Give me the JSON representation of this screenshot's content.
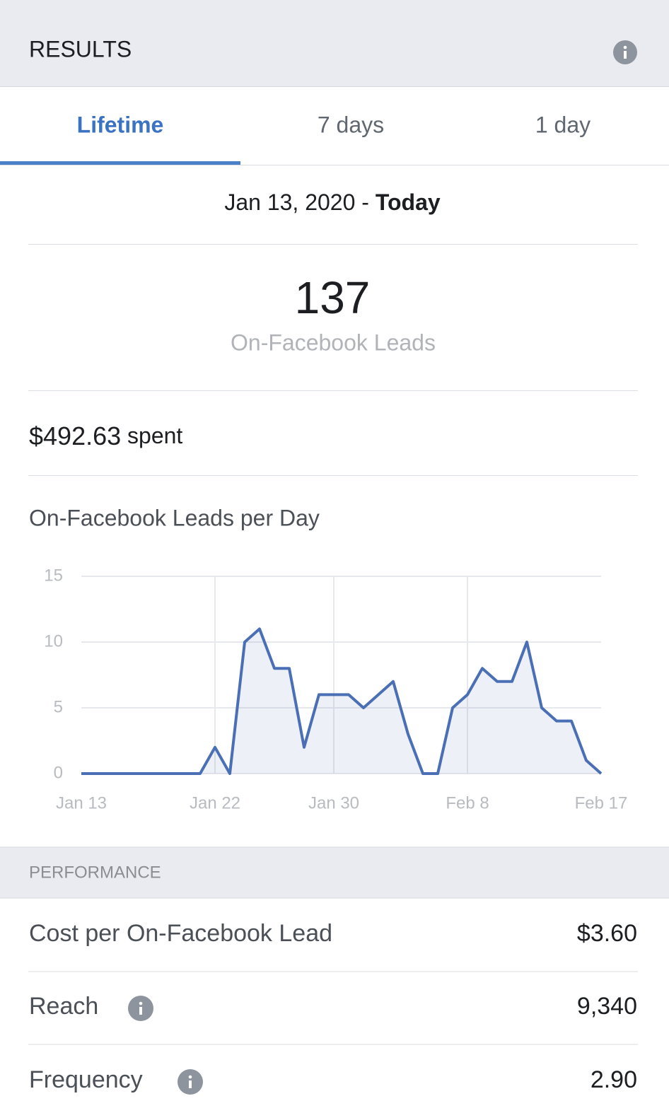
{
  "header": {
    "title": "RESULTS"
  },
  "tabs": {
    "items": [
      "Lifetime",
      "7 days",
      "1 day"
    ],
    "active": 0
  },
  "date_range": {
    "start": "Jan 13, 2020",
    "separator": "-",
    "end": "Today"
  },
  "summary": {
    "value": "137",
    "label": "On-Facebook Leads"
  },
  "spent": {
    "amount": "$492.63",
    "label": "spent"
  },
  "chart_data": {
    "type": "line",
    "title": "On-Facebook Leads per Day",
    "categories": [
      "Jan 13",
      null,
      null,
      null,
      null,
      null,
      null,
      null,
      null,
      "Jan 22",
      null,
      null,
      null,
      null,
      null,
      null,
      null,
      "Jan 30",
      null,
      null,
      null,
      null,
      null,
      null,
      null,
      null,
      "Feb 8",
      null,
      null,
      null,
      null,
      null,
      null,
      null,
      null,
      "Feb 17"
    ],
    "series": [
      {
        "color": "#4a6fb5",
        "values": [
          0,
          0,
          0,
          0,
          0,
          0,
          0,
          0,
          0,
          2,
          0,
          10,
          11,
          8,
          8,
          2,
          6,
          6,
          6,
          5,
          6,
          7,
          3,
          0,
          0,
          5,
          6,
          8,
          7,
          7,
          10,
          5,
          4,
          4,
          1,
          0
        ]
      }
    ],
    "ylim": [
      0,
      15
    ],
    "yticks": [
      0,
      5,
      10,
      15
    ],
    "grid": true
  },
  "performance": {
    "title": "PERFORMANCE",
    "rows": [
      {
        "label": "Cost per On-Facebook Lead",
        "value": "$3.60",
        "info": false
      },
      {
        "label": "Reach",
        "value": "9,340",
        "info": true
      },
      {
        "label": "Frequency",
        "value": "2.90",
        "info": true
      }
    ]
  }
}
